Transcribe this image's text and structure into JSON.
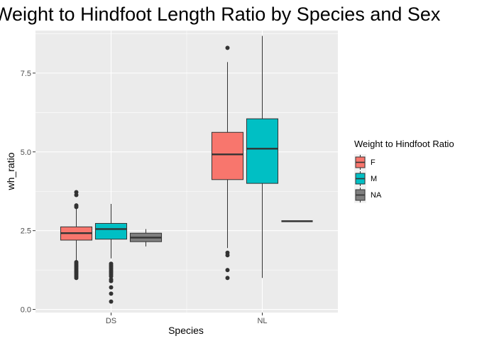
{
  "chart_data": {
    "type": "boxplot",
    "title": "Weight to Hindfoot Length Ratio by Species and Sex",
    "xlabel": "Species",
    "ylabel": "wh_ratio",
    "categories": [
      "DS",
      "NL"
    ],
    "yticks": [
      "0.0",
      "2.5",
      "5.0",
      "7.5"
    ],
    "ylim": [
      -0.1,
      8.85
    ],
    "grid": true,
    "legend": {
      "title": "Weight to Hindfoot Ratio",
      "position": "right",
      "entries": [
        {
          "label": "F",
          "color": "#F8766D"
        },
        {
          "label": "M",
          "color": "#00BFC4"
        },
        {
          "label": "NA",
          "color": "#7F7F7F"
        }
      ]
    },
    "series": [
      {
        "name": "F",
        "color": "#F8766D",
        "boxes": [
          {
            "category": "DS",
            "min": 1.55,
            "q1": 2.2,
            "median": 2.42,
            "q3": 2.62,
            "max": 3.2,
            "outliers": [
              3.72,
              3.63,
              3.3,
              3.25,
              1.5,
              1.45,
              1.4,
              1.35,
              1.3,
              1.25,
              1.2,
              1.15,
              1.1,
              1.05,
              1.0
            ]
          },
          {
            "category": "NL",
            "min": 1.95,
            "q1": 4.12,
            "median": 4.92,
            "q3": 5.62,
            "max": 7.85,
            "outliers": [
              8.3,
              1.8,
              1.72,
              1.25,
              1.0
            ]
          }
        ]
      },
      {
        "name": "M",
        "color": "#00BFC4",
        "boxes": [
          {
            "category": "DS",
            "min": 1.62,
            "q1": 2.23,
            "median": 2.55,
            "q3": 2.73,
            "max": 3.35,
            "outliers": [
              1.45,
              1.4,
              1.35,
              1.3,
              1.25,
              1.2,
              1.15,
              1.1,
              1.05,
              0.95,
              0.9,
              0.7,
              0.5,
              0.25
            ]
          },
          {
            "category": "NL",
            "min": 1.0,
            "q1": 4.0,
            "median": 5.1,
            "q3": 6.05,
            "max": 8.68,
            "outliers": []
          }
        ]
      },
      {
        "name": "NA",
        "color": "#7F7F7F",
        "boxes": [
          {
            "category": "DS",
            "min": 2.0,
            "q1": 2.15,
            "median": 2.28,
            "q3": 2.42,
            "max": 2.55,
            "outliers": []
          },
          {
            "category": "NL",
            "min": 2.8,
            "q1": 2.8,
            "median": 2.8,
            "q3": 2.8,
            "max": 2.8,
            "outliers": []
          }
        ]
      }
    ]
  }
}
